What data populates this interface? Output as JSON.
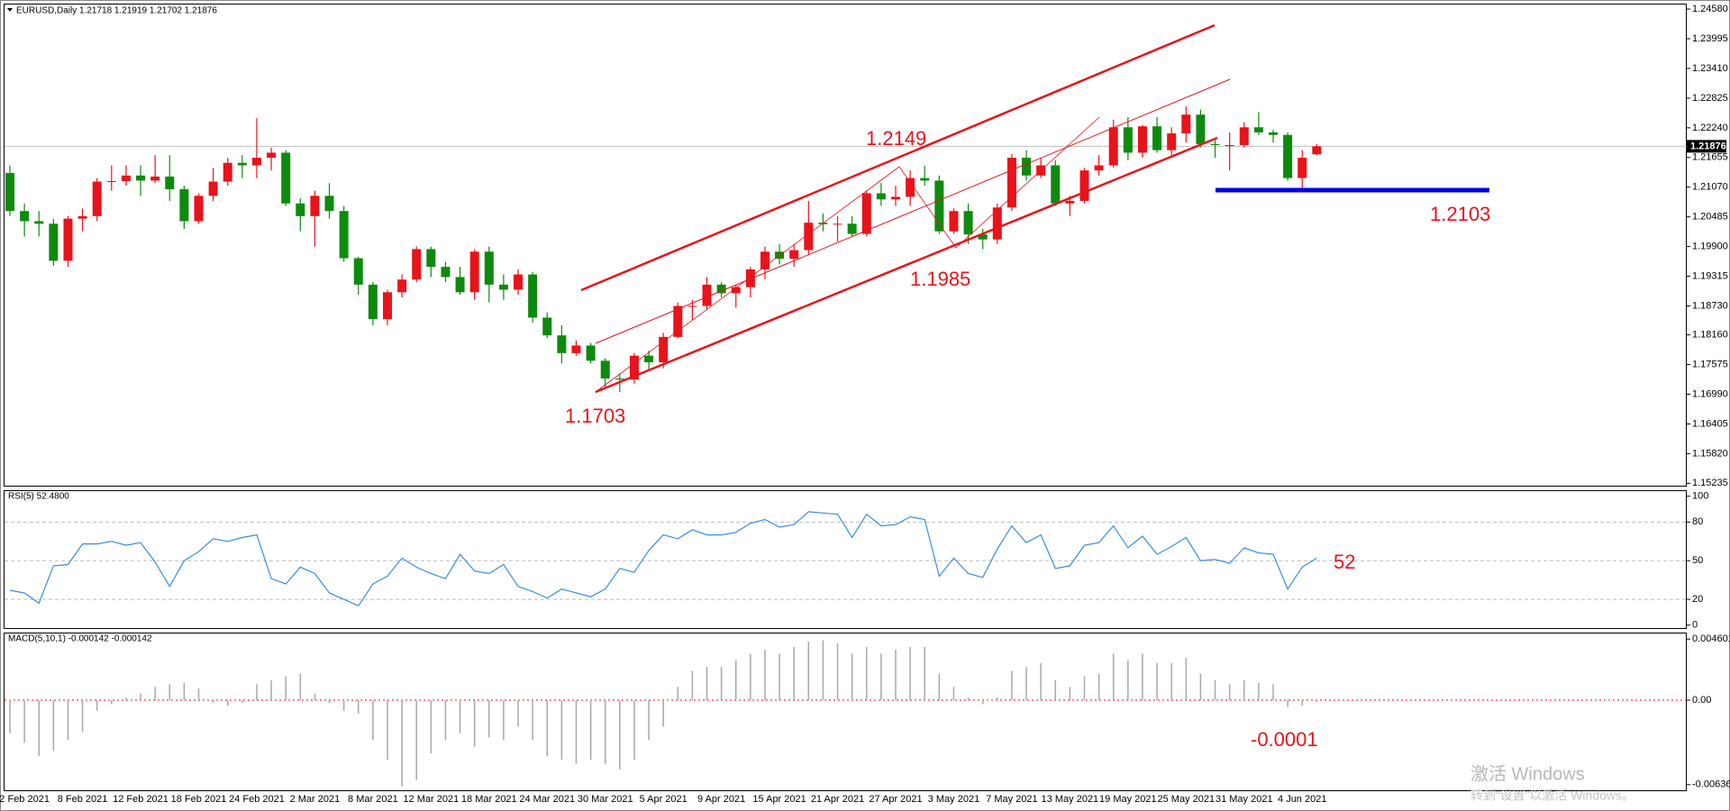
{
  "chart_data": [
    {
      "type": "candlestick",
      "title": "EURUSD,Daily  1.21718 1.21919 1.21702 1.21876",
      "up_color": "#e8131b",
      "down_color": "#0e8a0e",
      "categories": [
        null,
        "2 Feb 2021",
        null,
        null,
        null,
        "8 Feb 2021",
        null,
        null,
        null,
        "12 Feb 2021",
        null,
        null,
        null,
        "18 Feb 2021",
        null,
        null,
        null,
        "24 Feb 2021",
        null,
        null,
        null,
        "2 Mar 2021",
        null,
        null,
        null,
        "8 Mar 2021",
        null,
        null,
        null,
        "12 Mar 2021",
        null,
        null,
        null,
        "18 Mar 2021",
        null,
        null,
        null,
        "24 Mar 2021",
        null,
        null,
        null,
        "30 Mar 2021",
        null,
        null,
        null,
        "5 Apr 2021",
        null,
        null,
        null,
        "9 Apr 2021",
        null,
        null,
        null,
        "15 Apr 2021",
        null,
        null,
        null,
        "21 Apr 2021",
        null,
        null,
        null,
        "27 Apr 2021",
        null,
        null,
        null,
        "3 May 2021",
        null,
        null,
        null,
        "7 May 2021",
        null,
        null,
        null,
        "13 May 2021",
        null,
        null,
        null,
        "19 May 2021",
        null,
        null,
        null,
        "25 May 2021",
        null,
        null,
        null,
        "31 May 2021",
        null,
        null,
        null,
        "4 Jun 2021",
        null
      ],
      "open": [
        1.2135,
        1.206,
        1.204,
        1.2035,
        1.1962,
        1.2045,
        1.205,
        1.2118,
        1.2119,
        1.213,
        1.212,
        1.2128,
        1.2103,
        1.204,
        1.209,
        1.2118,
        1.2155,
        1.215,
        1.2165,
        1.2175,
        1.2075,
        1.205,
        1.209,
        1.206,
        1.1967,
        1.1915,
        1.1847,
        1.19,
        1.1925,
        1.1985,
        1.195,
        1.193,
        1.19,
        1.198,
        1.1915,
        1.1905,
        1.1935,
        1.185,
        1.1815,
        1.178,
        1.1795,
        1.1765,
        1.173,
        1.1728,
        1.1775,
        1.1762,
        1.1812,
        1.1873,
        1.1873,
        1.1915,
        1.1898,
        1.191,
        1.1945,
        1.198,
        1.1966,
        1.1983,
        1.2037,
        1.2034,
        1.2035,
        1.2015,
        1.2095,
        1.2083,
        1.2088,
        1.2125,
        1.212,
        1.202,
        1.206,
        1.2014,
        1.2004,
        1.2067,
        1.2165,
        1.213,
        1.215,
        1.2075,
        1.208,
        1.214,
        1.215,
        1.2225,
        1.2175,
        1.2227,
        1.218,
        1.2213,
        1.225,
        1.2192,
        1.219,
        1.219,
        1.2225,
        1.2215,
        1.221,
        1.2125,
        1.21718
      ],
      "high": [
        1.215,
        1.2075,
        1.206,
        1.2045,
        1.205,
        1.2065,
        1.2125,
        1.215,
        1.215,
        1.215,
        1.217,
        1.217,
        1.211,
        1.2095,
        1.2145,
        1.2165,
        1.217,
        1.2243,
        1.2185,
        1.218,
        1.2085,
        1.21,
        1.2115,
        1.207,
        1.197,
        1.192,
        1.1905,
        1.1935,
        1.199,
        1.199,
        1.196,
        1.195,
        1.1985,
        1.199,
        1.1935,
        1.1945,
        1.194,
        1.186,
        1.1835,
        1.1805,
        1.18,
        1.177,
        1.174,
        1.178,
        1.1785,
        1.182,
        1.188,
        1.1885,
        1.193,
        1.192,
        1.1915,
        1.195,
        1.199,
        1.1995,
        1.1995,
        1.208,
        1.2055,
        1.205,
        1.205,
        1.21,
        1.2115,
        1.211,
        1.214,
        1.2149,
        1.213,
        1.2065,
        1.2075,
        1.2025,
        1.2075,
        1.2172,
        1.218,
        1.2165,
        1.216,
        1.209,
        1.2145,
        1.217,
        1.224,
        1.2245,
        1.223,
        1.2245,
        1.2225,
        1.2266,
        1.226,
        1.22,
        1.2215,
        1.2235,
        1.2255,
        1.222,
        1.2215,
        1.218,
        1.21919
      ],
      "low": [
        1.205,
        1.201,
        1.201,
        1.1952,
        1.195,
        1.202,
        1.204,
        1.21,
        1.211,
        1.209,
        1.2115,
        1.208,
        1.2025,
        1.2035,
        1.208,
        1.211,
        1.2125,
        1.2125,
        1.214,
        1.207,
        1.202,
        1.199,
        1.2045,
        1.196,
        1.1895,
        1.1835,
        1.1835,
        1.189,
        1.192,
        1.193,
        1.192,
        1.1895,
        1.1885,
        1.188,
        1.1885,
        1.1895,
        1.184,
        1.181,
        1.176,
        1.1775,
        1.176,
        1.171,
        1.1703,
        1.172,
        1.1745,
        1.175,
        1.181,
        1.1845,
        1.1865,
        1.189,
        1.187,
        1.189,
        1.1925,
        1.1955,
        1.195,
        1.1975,
        1.202,
        1.2,
        1.201,
        1.201,
        1.207,
        1.207,
        1.207,
        1.211,
        1.2015,
        1.2015,
        1.1995,
        1.1985,
        1.1995,
        1.206,
        1.212,
        1.2125,
        1.207,
        1.205,
        1.2075,
        1.213,
        1.2145,
        1.216,
        1.2165,
        1.2175,
        1.217,
        1.2195,
        1.2185,
        1.2165,
        1.214,
        1.2185,
        1.221,
        1.2195,
        1.212,
        1.2103,
        1.21702
      ],
      "close": [
        1.206,
        1.204,
        1.2035,
        1.1962,
        1.2045,
        1.205,
        1.2118,
        1.2119,
        1.213,
        1.212,
        1.2128,
        1.2103,
        1.204,
        1.209,
        1.2118,
        1.2155,
        1.215,
        1.2165,
        1.2175,
        1.2075,
        1.205,
        1.209,
        1.206,
        1.1967,
        1.1915,
        1.1847,
        1.19,
        1.1925,
        1.1985,
        1.195,
        1.193,
        1.19,
        1.198,
        1.1915,
        1.1905,
        1.1935,
        1.185,
        1.1815,
        1.178,
        1.1795,
        1.1765,
        1.173,
        1.1728,
        1.1775,
        1.1762,
        1.1812,
        1.1873,
        1.1873,
        1.1915,
        1.1898,
        1.191,
        1.1945,
        1.198,
        1.1966,
        1.1983,
        1.2037,
        1.2034,
        1.2035,
        1.2015,
        1.2095,
        1.2083,
        1.2088,
        1.2125,
        1.212,
        1.202,
        1.206,
        1.2014,
        1.2004,
        1.2067,
        1.2165,
        1.213,
        1.215,
        1.2075,
        1.208,
        1.214,
        1.215,
        1.2225,
        1.2175,
        1.2227,
        1.218,
        1.2213,
        1.225,
        1.2192,
        1.219,
        1.219,
        1.2225,
        1.2215,
        1.221,
        1.2125,
        1.2165,
        1.21876
      ],
      "current_price": 1.21876,
      "ylim": [
        1.1517,
        1.2467
      ],
      "yticks": [
        {
          "value": 1.2458,
          "label": "1.24580"
        },
        1.23995,
        {
          "value": 1.2341,
          "label": "1.23410"
        },
        1.22825,
        {
          "value": 1.2224,
          "label": "1.22240"
        },
        1.21655,
        {
          "value": 1.2107,
          "label": "1.21070"
        },
        1.20485,
        {
          "value": 1.199,
          "label": "1.19900"
        },
        1.19315,
        {
          "value": 1.1873,
          "label": "1.18730"
        },
        {
          "value": 1.1816,
          "label": "1.18160"
        },
        1.17575,
        {
          "value": 1.1699,
          "label": "1.16990"
        },
        1.16405,
        {
          "value": 1.1582,
          "label": "1.15820"
        },
        1.15235
      ],
      "annotations": [
        "1.2149",
        "1.1985",
        "1.1703",
        "1.2103"
      ]
    },
    {
      "type": "line",
      "title": "RSI(5) 52.4800",
      "color": "#3a8ee0",
      "values": [
        27,
        25,
        17,
        46,
        47,
        63,
        63,
        65,
        62,
        64,
        49,
        30,
        50,
        57,
        67,
        65,
        68,
        70,
        36,
        32,
        45,
        40,
        25,
        20,
        15,
        32,
        38,
        52,
        45,
        40,
        36,
        55,
        42,
        40,
        47,
        30,
        26,
        21,
        28,
        25,
        22,
        28,
        44,
        41,
        58,
        70,
        67,
        74,
        70,
        70,
        72,
        79,
        82,
        76,
        78,
        88,
        87,
        86,
        68,
        86,
        77,
        78,
        84,
        82,
        38,
        52,
        40,
        37,
        59,
        77,
        64,
        70,
        44,
        46,
        62,
        64,
        77,
        60,
        69,
        55,
        61,
        68,
        50,
        51,
        48,
        60,
        56,
        55,
        28,
        45,
        52
      ],
      "ylim": [
        -3,
        104
      ],
      "yticks": [
        0,
        20,
        50,
        80,
        100
      ],
      "levels": [
        20,
        50,
        80
      ],
      "annotations": [
        "52"
      ]
    },
    {
      "type": "bar",
      "title": "MACD(5,10,1) -0.000142 -0.000142",
      "color": "#a8a8a8",
      "level_color": "#e8131b",
      "values": [
        -0.0025,
        -0.0032,
        -0.0042,
        -0.0038,
        -0.003,
        -0.0024,
        -0.0008,
        -0.0003,
        0.0002,
        0.0005,
        0.001,
        0.0012,
        0.0013,
        0.0009,
        -0.0002,
        -0.0004,
        -0.0002,
        0.0012,
        0.0015,
        0.0018,
        0.002,
        0.0005,
        -0.0002,
        -0.0008,
        -0.001,
        -0.003,
        -0.0045,
        -0.0065,
        -0.006,
        -0.004,
        -0.003,
        -0.0025,
        -0.0035,
        -0.0028,
        -0.003,
        -0.002,
        -0.003,
        -0.0042,
        -0.0045,
        -0.0048,
        -0.0045,
        -0.0048,
        -0.0052,
        -0.0045,
        -0.003,
        -0.002,
        0.001,
        0.0022,
        0.0025,
        0.0025,
        0.003,
        0.0035,
        0.0038,
        0.0035,
        0.004,
        0.0044,
        0.0045,
        0.0043,
        0.0035,
        0.004,
        0.0035,
        0.0038,
        0.004,
        0.004,
        0.002,
        0.001,
        0.0002,
        -0.0003,
        0.0002,
        0.0022,
        0.0025,
        0.0028,
        0.0015,
        0.001,
        0.0018,
        0.002,
        0.0035,
        0.003,
        0.0035,
        0.0028,
        0.0028,
        0.0032,
        0.002,
        0.0015,
        0.0012,
        0.0015,
        0.0013,
        0.0012,
        -0.0005,
        -0.0004,
        -0.000142
      ],
      "ylim": [
        -0.00678,
        0.00502
      ],
      "yticks": [
        0.004601,
        {
          "value": 0,
          "label": "0.00"
        },
        -0.006361
      ],
      "levels": [
        0
      ],
      "annotations": [
        "-0.0001"
      ]
    }
  ],
  "watermark": {
    "line1": "激活 Windows",
    "line2": "转到“设置”以激活 Windows。"
  }
}
